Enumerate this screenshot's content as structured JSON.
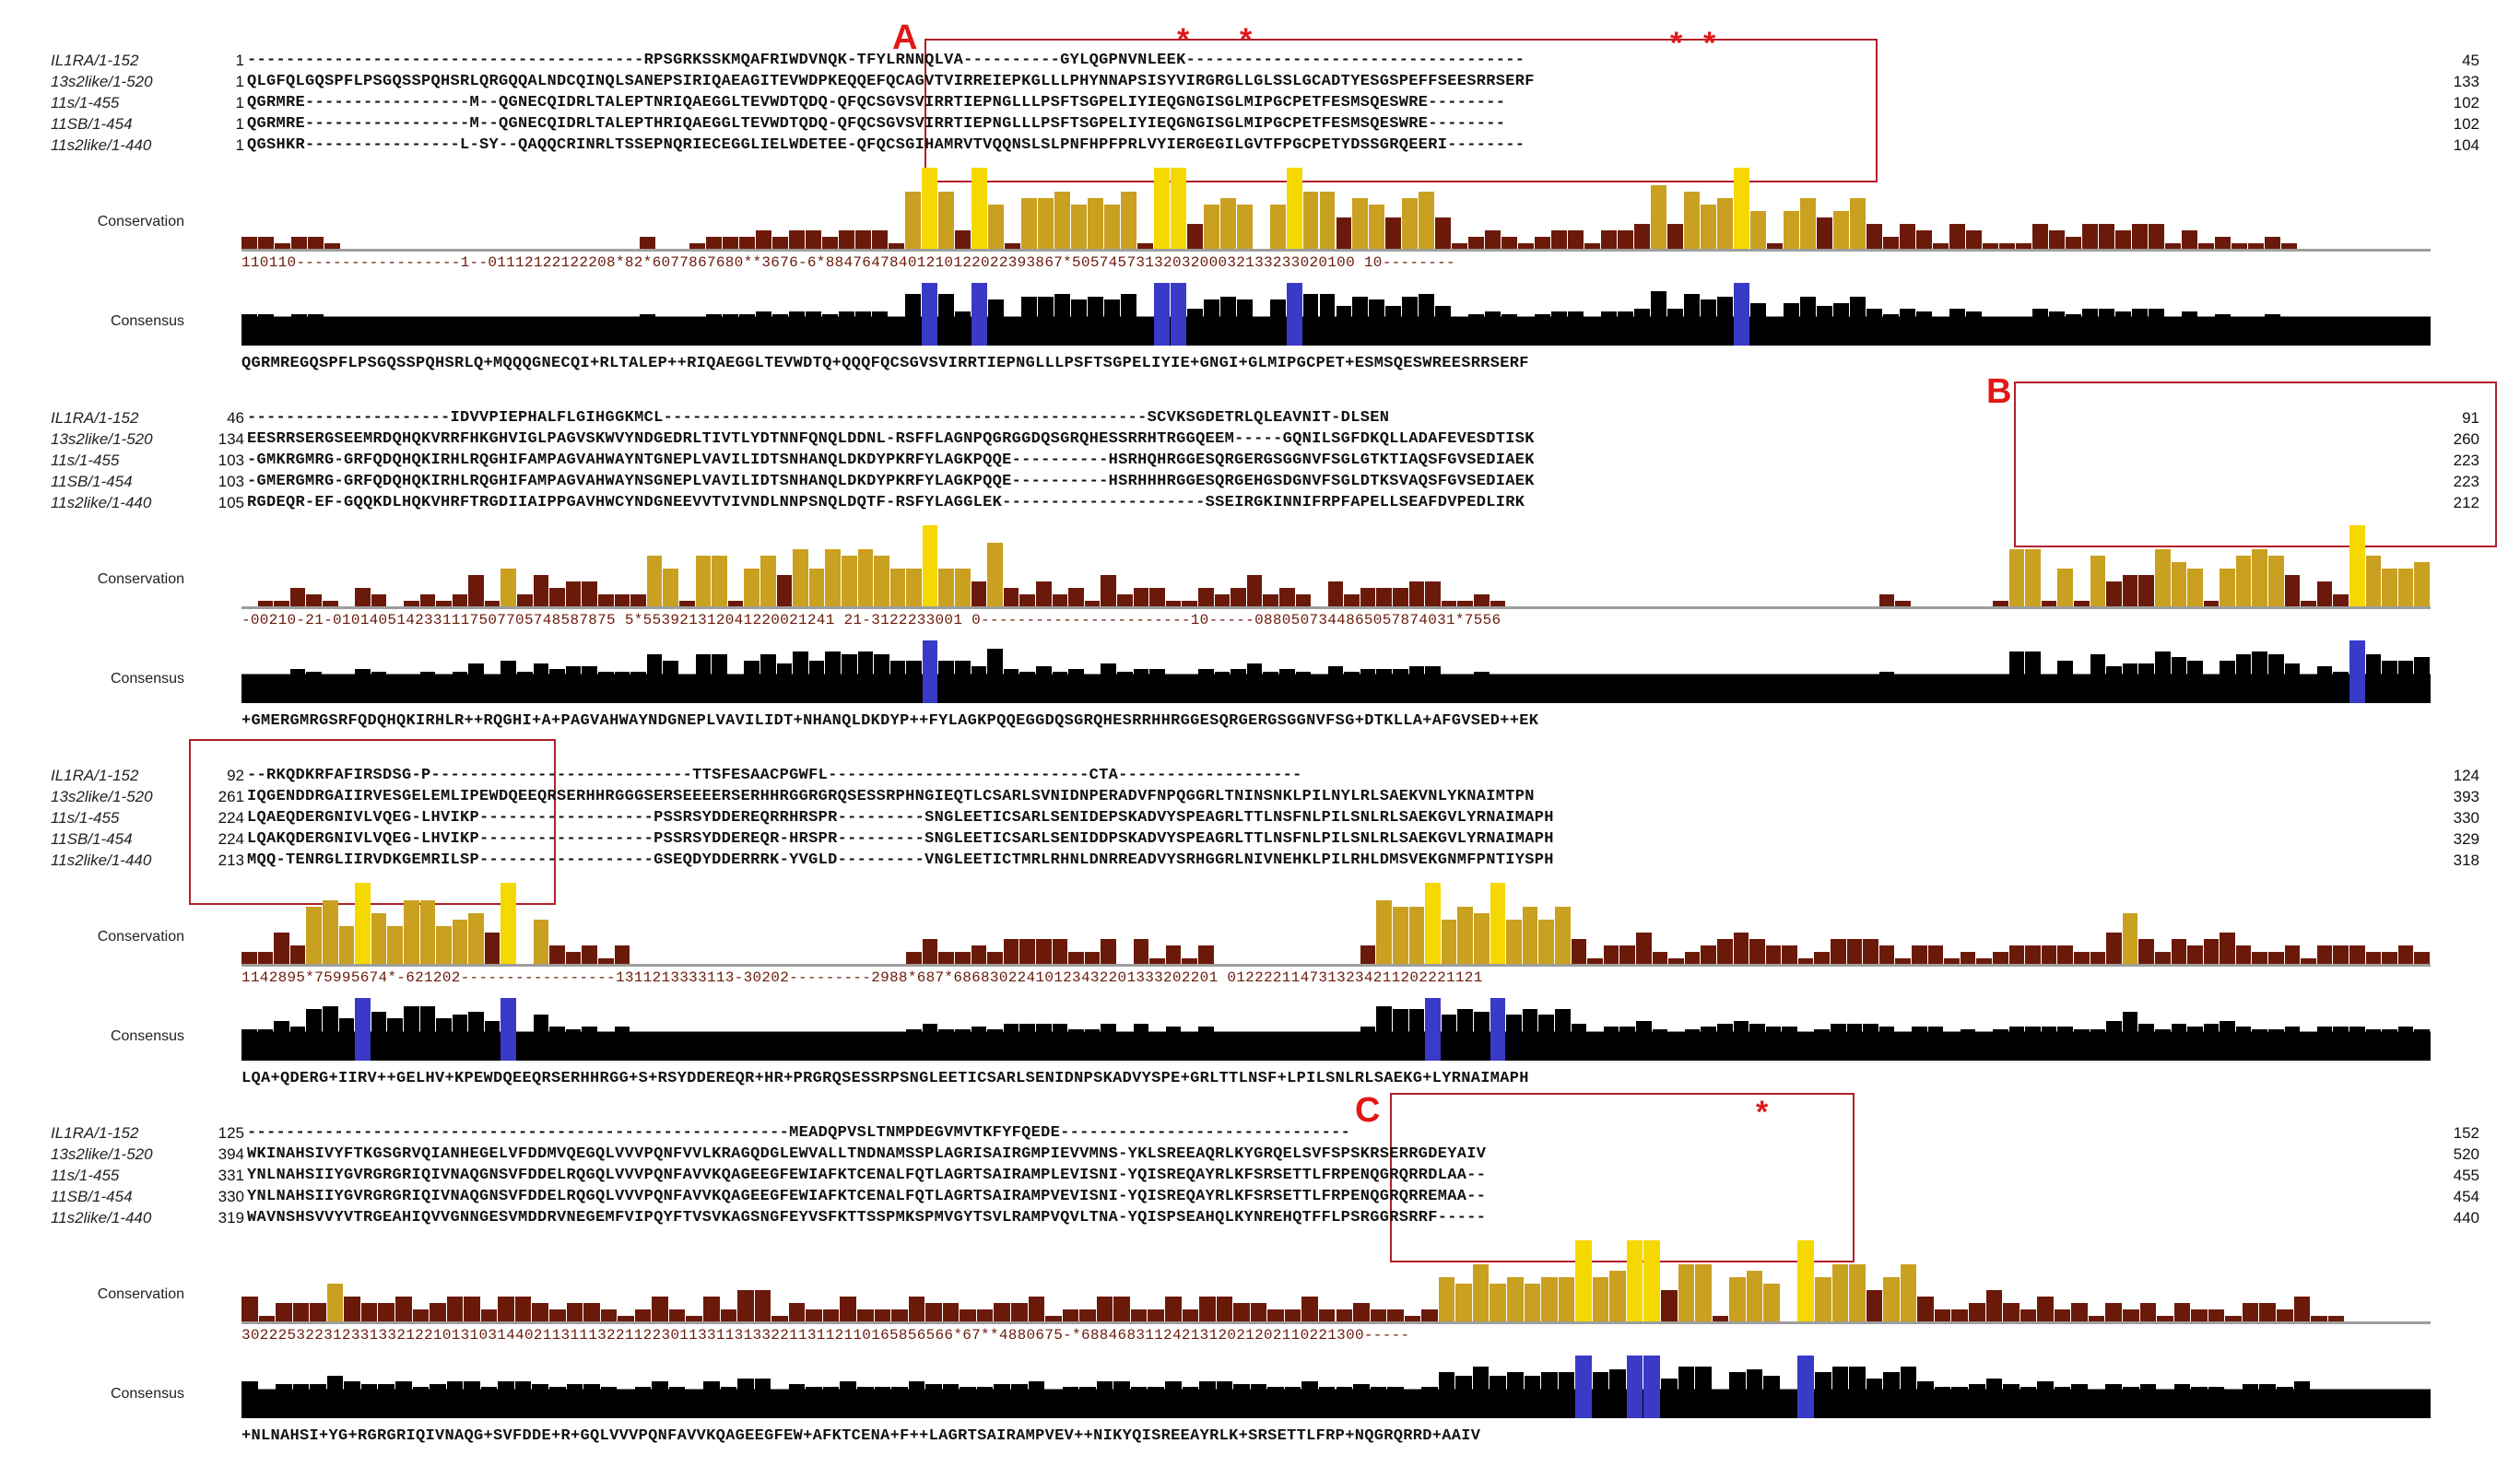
{
  "sequence_names": [
    "IL1RA/1-152",
    "13s2like/1-520",
    "11s/1-455",
    "11SB/1-454",
    "11s2like/1-440"
  ],
  "row_labels": {
    "conservation": "Conservation",
    "consensus": "Consensus"
  },
  "colors": {
    "highlight_dark": "#4b4bd6",
    "highlight_mid": "#8a8ae6",
    "highlight_light": "#c6c6f2",
    "conservation_high": "#f5d800",
    "conservation_mid": "#c9a020",
    "conservation_low": "#6b1a0a",
    "box": "#b0202a",
    "annotation": "#e01818"
  },
  "blocks": [
    {
      "rows": [
        {
          "name": "IL1RA/1-152",
          "start": "1",
          "seq": "-----------------------------------------RPSGRKSSKMQAFRIWDVNQK-TFYLRNNQLVA----------GYLQGPNVNLEEK-----------------------------------",
          "end": "45"
        },
        {
          "name": "13s2like/1-520",
          "start": "1",
          "seq": "QLGFQLGQSPFLPSGQSSPQHSRLQRGQQALNDCQINQLSANEPSIRIQAEAGITEVWDPKEQQEFQCAGVTVIRREIEPKGLLLPHYNNAPSISYVIRGRGLLGLSSLGCADTYESGSPEFFSEESRRSERF",
          "end": "133"
        },
        {
          "name": "11s/1-455",
          "start": "1",
          "seq": "QGRMRE-----------------M--QGNECQIDRLTALEPTNRIQAEGGLTEVWDTQDQ-QFQCSGVSVIRRTIEPNGLLLPSFTSGPELIYIEQGNGISGLMIPGCPETFESMSQESWRE--------",
          "end": "102"
        },
        {
          "name": "11SB/1-454",
          "start": "1",
          "seq": "QGRMRE-----------------M--QGNECQIDRLTALEPTHRIQAEGGLTEVWDTQDQ-QFQCSGVSVIRRTIEPNGLLLPSFTSGPELIYIEQGNGISGLMIPGCPETFESMSQESWRE--------",
          "end": "102"
        },
        {
          "name": "11s2like/1-440",
          "start": "1",
          "seq": "QGSHKR----------------L-SY--QAQQCRINRLTSSEPNQRIECEGGLIELWDETEE-QFQCSGIHAMRVTVQQNSLSLPNFHPFPRLVYIERGEGILGVTFPGCPETYDSSGRQEERI--------",
          "end": "104"
        }
      ],
      "conservation_numbers": "110110------------------1--01112122122208*82*6077867680**3676-6*88476478401210122022393867*5057457313203200032133233020100 10--------",
      "consensus": "QGRMREGQSPFLPSGQSSPQHSRLQ+MQQQGNECQI+RLTALEP++RIQAEGGLTEVWDTQ+QQQFQCSGVSVIRRTIEPNGLLLPSFTSGPELIYIE+GNGI+GLMIPGCPET+ESMSQESWREESRRSERF",
      "annotation": {
        "label": "A",
        "stars": 4
      }
    },
    {
      "rows": [
        {
          "name": "IL1RA/1-152",
          "start": "46",
          "seq": "---------------------IDVVPIEPHALFLGIHGGKMCL--------------------------------------------------SCVKSGDETRLQLEAVNIT-DLSEN",
          "end": "91"
        },
        {
          "name": "13s2like/1-520",
          "start": "134",
          "seq": "EESRRSERGSEEMRDQHQKVRRFHKGHVIGLPAGVSKWVYNDGEDRLTIVTLYDTNNFQNQLDDNL-RSFFLAGNPQGRGGDQSGRQHESSRRHTRGGQEEM-----GQNILSGFDKQLLADAFEVESDTISK",
          "end": "260"
        },
        {
          "name": "11s/1-455",
          "start": "103",
          "seq": "-GMKRGMRG-GRFQDQHQKIRHLRQGHIFAMPAGVAHWAYNTGNEPLVAVILIDTSNHANQLDKDYPKRFYLAGKPQQE----------HSRHQHRGGESQRGERGSGGNVFSGLGTKTIAQSFGVSEDIAEK",
          "end": "223"
        },
        {
          "name": "11SB/1-454",
          "start": "103",
          "seq": "-GMERGMRG-GRFQDQHQKIRHLRQGHIFAMPAGVAHWAYNSGNEPLVAVILIDTSNHANQLDKDYPKRFYLAGKPQQE----------HSRHHHRGGESQRGEHGSDGNVFSGLDTKSVAQSFGVSEDIAEK",
          "end": "223"
        },
        {
          "name": "11s2like/1-440",
          "start": "105",
          "seq": "RGDEQR-EF-GQQKDLHQKVHRFTRGDIIAIPPGAVHWCYNDGNEEVVTVIVNDLNNPSNQLDQTF-RSFYLAGGLEK---------------------SSEIRGKINNIFRPFAPELLSEAFDVPEDLIRK",
          "end": "212"
        }
      ],
      "conservation_numbers": "-00210-21-0101405142331117507705748587875 5*553921312041220021241 21-3122233001 0-----------------------10-----0880507344865057874031*7556",
      "consensus": "+GMERGMRGSRFQDQHQKIRHLR++RQGHI+A+PAGVAHWAYNDGNEPLVAVILIDT+NHANQLDKDYP++FYLAGKPQQEGGDQSGRQHESRRHHRGGESQRGERGSGGNVFSG+DTKLLA+AFGVSED++EK",
      "annotation": {
        "label": "B",
        "stars": 0
      }
    },
    {
      "rows": [
        {
          "name": "IL1RA/1-152",
          "start": "92",
          "seq": "--RKQDKRFAFIRSDSG-P---------------------------TTSFESAACPGWFL---------------------------CTA-------------------",
          "end": "124"
        },
        {
          "name": "13s2like/1-520",
          "start": "261",
          "seq": "IQGENDDRGAIIRVESGELEMLIPEWDQEEQRSERHHRGGGSERSEEEERSERHHRGGRGRQSESSRPHNGIEQTLCSARLSVNIDNPERADVFNPQGGRLTNINSNKLPILNYLRLSAEKVNLYKNAIMTPN",
          "end": "393"
        },
        {
          "name": "11s/1-455",
          "start": "224",
          "seq": "LQAEQDERGNIVLVQEG-LHVIKP------------------PSSRSYDDEREQRRHRSPR---------SNGLEETICSARLSENIDEPSKADVYSPEAGRLTTLNSFNLPILSNLRLSAEKGVLYRNAIMAPH",
          "end": "330"
        },
        {
          "name": "11SB/1-454",
          "start": "224",
          "seq": "LQAKQDERGNIVLVQEG-LHVIKP------------------PSSRSYDDEREQR-HRSPR---------SNGLEETICSARLSENIDDPSKADVYSPEAGRLTTLNSFNLPILSNLRLSAEKGVLYRNAIMAPH",
          "end": "329"
        },
        {
          "name": "11s2like/1-440",
          "start": "213",
          "seq": "MQQ-TENRGLIIRVDKGEMRILSP------------------GSEQDYDDERRRK-YVGLD---------VNGLEETICTMRLRHNLDNRREADVYSRHGGRLNIVNEHKLPILRHLDMSVEKGNMFPNTIYSPH",
          "end": "318"
        }
      ],
      "conservation_numbers": "1142895*75995674*-621202-----------------1311213333113-30202---------2988*687*68683022410123432201333202201 0122221147313234211202221121",
      "consensus": "LQA+QDERG+IIRV++GELHV+KPEWDQEEQRSERHHRGG+S+RSYDDEREQR+HR+PRGRQSESSRPSNGLEETICSARLSENIDNPSKADVYSPE+GRLTTLNSF+LPILSNLRLSAEKG+LYRNAIMAPH",
      "annotation": {
        "label": "",
        "stars": 0
      }
    },
    {
      "rows": [
        {
          "name": "IL1RA/1-152",
          "start": "125",
          "seq": "--------------------------------------------------------MEADQPVSLTNMPDEGVMVTKFYFQEDE------------------------------",
          "end": "152"
        },
        {
          "name": "13s2like/1-520",
          "start": "394",
          "seq": "WKINAHSIVYFTKGSGRVQIANHEGELVFDDMVQEGQLVVVPQNFVVLKRAGQDGLEWVALLTNDNAMSSPLAGRISAIRGMPIEVVMNS-YKLSREEAQRLKYGRQELSVFSPSKRSERRGDEYAIV",
          "end": "520"
        },
        {
          "name": "11s/1-455",
          "start": "331",
          "seq": "YNLNAHSIIYGVRGRGRIQIVNAQGNSVFDDELRQGQLVVVPQNFAVVKQAGEEGFEWIAFKTCENALFQTLAGRTSAIRAMPLEVISNI-YQISREQAYRLKFSRSETTLFRPENQGRQRRDLAA--",
          "end": "455"
        },
        {
          "name": "11SB/1-454",
          "start": "330",
          "seq": "YNLNAHSIIYGVRGRGRIQIVNAQGNSVFDDELRQGQLVVVPQNFAVVKQAGEEGFEWIAFKTCENALFQTLAGRTSAIRAMPVEVISNI-YQISREQAYRLKFSRSETTLFRPENQGRQRREMAA--",
          "end": "454"
        },
        {
          "name": "11s2like/1-440",
          "start": "319",
          "seq": "WAVNSHSVVYVTRGEAHIQVVGNNGESVMDDRVNEGEMFVIPQYFTVSVKAGSNGFEYVSFKTTSSPMKSPMVGYTSVLRAMPVQVLTNA-YQISPSEAHQLKYNREHQTFFLPSRGGRSRRF-----",
          "end": "440"
        }
      ],
      "conservation_numbers": "302225322312331332122101310314402113111322112230113311313322113112110165856566*67**4880675-*6884683112421312021202110221300-----",
      "consensus": "+NLNAHSI+YG+RGRGRIQIVNAQG+SVFDDE+R+GQLVVVPQNFAVVKQAGEEGFEW+AFKTCENA+F++LAGRTSAIRAMPVEV++NIKYQISREEAYRLK+SRSETTLFRP+NQGRQRRD+AAIV",
      "annotation": {
        "label": "C",
        "stars": 1
      }
    }
  ]
}
